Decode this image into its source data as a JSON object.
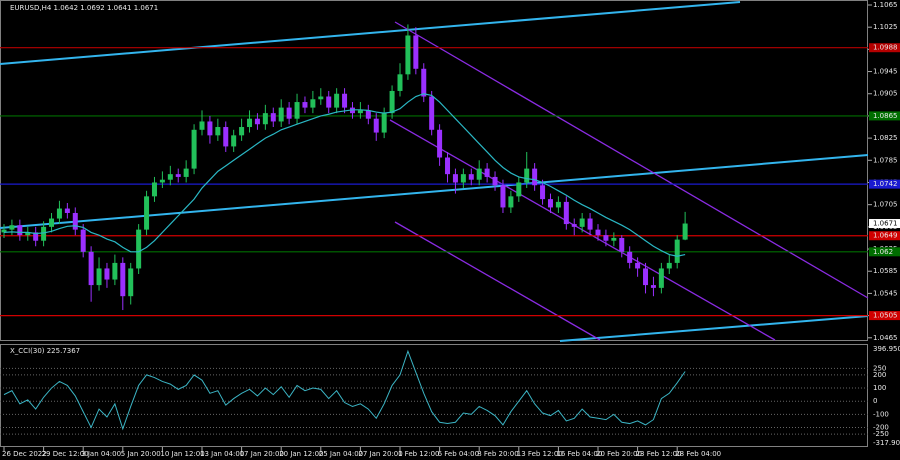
{
  "chart_data": [
    {
      "type": "candlestick",
      "title": "EURUSD,H4 1.0642 1.0692 1.0641 1.0671",
      "categories": [
        "26 Dec 2022",
        null,
        null,
        null,
        null,
        "29 Dec 12:00",
        null,
        null,
        null,
        null,
        "3 Jan 04:00",
        null,
        null,
        null,
        null,
        "5 Jan 20:00",
        null,
        null,
        null,
        null,
        "10 Jan 12:00",
        null,
        null,
        null,
        null,
        "13 Jan 04:00",
        null,
        null,
        null,
        null,
        "17 Jan 20:00",
        null,
        null,
        null,
        null,
        "20 Jan 12:00",
        null,
        null,
        null,
        null,
        "25 Jan 04:00",
        null,
        null,
        null,
        null,
        "27 Jan 20:00",
        null,
        null,
        null,
        null,
        "1 Feb 12:00",
        null,
        null,
        null,
        null,
        "6 Feb 04:00",
        null,
        null,
        null,
        null,
        "8 Feb 20:00",
        null,
        null,
        null,
        null,
        "13 Feb 12:00",
        null,
        null,
        null,
        null,
        "16 Feb 04:00",
        null,
        null,
        null,
        null,
        "20 Feb 20:00",
        null,
        null,
        null,
        null,
        "23 Feb 12:00",
        null,
        null,
        null,
        null,
        "28 Feb 04:00",
        null
      ],
      "open": [
        1.0655,
        1.066,
        1.0668,
        1.065,
        1.0655,
        1.064,
        1.0665,
        1.068,
        1.0698,
        1.069,
        1.066,
        1.062,
        1.056,
        1.059,
        1.057,
        1.06,
        1.054,
        1.059,
        1.066,
        1.072,
        1.0745,
        1.075,
        1.076,
        1.0755,
        1.077,
        1.084,
        1.0855,
        1.083,
        1.0845,
        1.081,
        1.083,
        1.0845,
        1.086,
        1.085,
        1.087,
        1.0855,
        1.088,
        1.086,
        1.089,
        1.088,
        1.0895,
        1.09,
        1.088,
        1.0905,
        1.088,
        1.087,
        1.0875,
        1.086,
        1.0835,
        1.087,
        1.091,
        1.094,
        1.101,
        1.095,
        1.09,
        1.084,
        1.079,
        1.076,
        1.0745,
        1.076,
        1.075,
        1.077,
        1.0755,
        1.074,
        1.07,
        1.072,
        1.0745,
        1.077,
        1.074,
        1.0715,
        1.07,
        1.071,
        1.067,
        1.0665,
        1.068,
        1.066,
        1.065,
        1.064,
        1.0645,
        1.062,
        1.06,
        1.059,
        1.056,
        1.0555,
        1.059,
        1.06,
        1.0642
      ],
      "high": [
        1.067,
        1.0678,
        1.0678,
        1.0665,
        1.0665,
        1.0675,
        1.069,
        1.0712,
        1.0708,
        1.07,
        1.067,
        1.063,
        1.061,
        1.06,
        1.0615,
        1.061,
        1.06,
        1.067,
        1.073,
        1.0755,
        1.0765,
        1.0775,
        1.077,
        1.0785,
        1.085,
        1.0875,
        1.0865,
        1.086,
        1.0855,
        1.084,
        1.086,
        1.0875,
        1.087,
        1.0885,
        1.088,
        1.0895,
        1.089,
        1.0905,
        1.09,
        1.091,
        1.0915,
        1.091,
        1.0915,
        1.0915,
        1.089,
        1.089,
        1.0885,
        1.087,
        1.088,
        1.092,
        1.096,
        1.103,
        1.1025,
        1.096,
        1.091,
        1.085,
        1.08,
        1.077,
        1.077,
        1.077,
        1.0785,
        1.078,
        1.0765,
        1.075,
        1.073,
        1.0755,
        1.08,
        1.078,
        1.075,
        1.0725,
        1.072,
        1.072,
        1.068,
        1.069,
        1.069,
        1.067,
        1.066,
        1.0655,
        1.065,
        1.063,
        1.061,
        1.06,
        1.0575,
        1.06,
        1.0615,
        1.065,
        1.0692
      ],
      "low": [
        1.0645,
        1.065,
        1.064,
        1.064,
        1.063,
        1.063,
        1.0655,
        1.067,
        1.068,
        1.065,
        1.061,
        1.053,
        1.055,
        1.0555,
        1.056,
        1.0515,
        1.0525,
        1.058,
        1.065,
        1.071,
        1.0735,
        1.074,
        1.0745,
        1.0745,
        1.076,
        1.083,
        1.0815,
        1.082,
        1.08,
        1.08,
        1.082,
        1.0835,
        1.084,
        1.084,
        1.0845,
        1.0845,
        1.085,
        1.085,
        1.087,
        1.087,
        1.0885,
        1.087,
        1.087,
        1.087,
        1.086,
        1.086,
        1.085,
        1.082,
        1.0825,
        1.086,
        1.09,
        1.093,
        1.094,
        1.089,
        1.083,
        1.0775,
        1.0745,
        1.0725,
        1.0735,
        1.074,
        1.074,
        1.0745,
        1.073,
        1.069,
        1.069,
        1.071,
        1.0735,
        1.073,
        1.0705,
        1.069,
        1.069,
        1.066,
        1.065,
        1.0655,
        1.065,
        1.064,
        1.063,
        1.063,
        1.061,
        1.059,
        1.0575,
        1.0545,
        1.054,
        1.0545,
        1.058,
        1.059,
        1.0641
      ],
      "close": [
        1.066,
        1.0668,
        1.065,
        1.0655,
        1.064,
        1.0665,
        1.068,
        1.0698,
        1.069,
        1.066,
        1.062,
        1.056,
        1.059,
        1.057,
        1.06,
        1.054,
        1.059,
        1.066,
        1.072,
        1.0745,
        1.075,
        1.076,
        1.0755,
        1.077,
        1.084,
        1.0855,
        1.083,
        1.0845,
        1.081,
        1.083,
        1.0845,
        1.086,
        1.085,
        1.087,
        1.0855,
        1.088,
        1.086,
        1.089,
        1.088,
        1.0895,
        1.09,
        1.088,
        1.0905,
        1.088,
        1.087,
        1.0875,
        1.086,
        1.0835,
        1.087,
        1.091,
        1.094,
        1.101,
        1.095,
        1.09,
        1.084,
        1.079,
        1.076,
        1.0745,
        1.076,
        1.075,
        1.077,
        1.0755,
        1.074,
        1.07,
        1.072,
        1.0745,
        1.077,
        1.074,
        1.0715,
        1.07,
        1.071,
        1.067,
        1.0665,
        1.068,
        1.066,
        1.065,
        1.064,
        1.0645,
        1.062,
        1.06,
        1.059,
        1.056,
        1.0555,
        1.059,
        1.06,
        1.0642,
        1.0671
      ],
      "up_color": "#22c05a",
      "down_color": "#9b30ff",
      "overlay": {
        "color": "#2ab7c4",
        "values": [
          1.0655,
          1.0656,
          1.0655,
          1.0655,
          1.0653,
          1.0654,
          1.0657,
          1.0662,
          1.0666,
          1.0667,
          1.0664,
          1.0655,
          1.065,
          1.0643,
          1.0638,
          1.0628,
          1.062,
          1.062,
          1.0628,
          1.064,
          1.0655,
          1.067,
          1.0685,
          1.07,
          1.0715,
          1.0735,
          1.075,
          1.0765,
          1.0775,
          1.0785,
          1.0795,
          1.0805,
          1.0815,
          1.0825,
          1.0832,
          1.084,
          1.0845,
          1.085,
          1.0855,
          1.086,
          1.0865,
          1.0868,
          1.0872,
          1.0874,
          1.0876,
          1.0876,
          1.0875,
          1.0872,
          1.087,
          1.0872,
          1.0878,
          1.089,
          1.09,
          1.0905,
          1.0902,
          1.089,
          1.0875,
          1.086,
          1.0845,
          1.083,
          1.0815,
          1.08,
          1.0785,
          1.0772,
          1.0762,
          1.0755,
          1.0752,
          1.075,
          1.0745,
          1.0738,
          1.073,
          1.0722,
          1.0713,
          1.0705,
          1.0698,
          1.069,
          1.0682,
          1.0675,
          1.0668,
          1.066,
          1.065,
          1.064,
          1.063,
          1.0622,
          1.0615,
          1.0612,
          1.0615
        ]
      },
      "levels": [
        {
          "value": 1.0988,
          "color": "#b40000"
        },
        {
          "value": 1.0865,
          "color": "#006e00"
        },
        {
          "value": 1.0742,
          "color": "#1a1ad0"
        },
        {
          "value": 1.0649,
          "color": "#d00000"
        },
        {
          "value": 1.062,
          "color": "#006e00"
        },
        {
          "value": 1.0505,
          "color": "#d00000"
        }
      ],
      "ylim": [
        1.0461,
        1.1074
      ],
      "yticks": [
        1.1065,
        1.1025,
        1.0985,
        1.0945,
        1.0905,
        1.0865,
        1.0825,
        1.0785,
        1.0745,
        1.0705,
        1.0665,
        1.0625,
        1.0585,
        1.0545,
        1.0505,
        1.0465
      ]
    },
    {
      "type": "line",
      "title": "X_CCI(30) 225.7367",
      "color": "#3bb4c4",
      "values": [
        50,
        80,
        -20,
        10,
        -60,
        30,
        100,
        150,
        120,
        40,
        -80,
        -200,
        -60,
        -120,
        -20,
        -210,
        -40,
        120,
        200,
        180,
        150,
        130,
        90,
        120,
        200,
        160,
        60,
        80,
        -30,
        20,
        60,
        90,
        40,
        100,
        50,
        110,
        30,
        120,
        80,
        100,
        90,
        20,
        80,
        -10,
        -40,
        -20,
        -60,
        -130,
        -20,
        120,
        200,
        380,
        220,
        60,
        -80,
        -160,
        -170,
        -160,
        -90,
        -100,
        -40,
        -70,
        -110,
        -180,
        -80,
        0,
        80,
        -20,
        -90,
        -110,
        -70,
        -150,
        -130,
        -60,
        -120,
        -130,
        -140,
        -100,
        -160,
        -170,
        -150,
        -180,
        -140,
        20,
        60,
        140,
        225.7367
      ],
      "ylim": [
        -317.906,
        396.9508
      ],
      "yticks": [
        396.9508,
        250,
        200,
        100,
        0,
        -100,
        -200,
        -250,
        -317.906
      ]
    }
  ]
}
